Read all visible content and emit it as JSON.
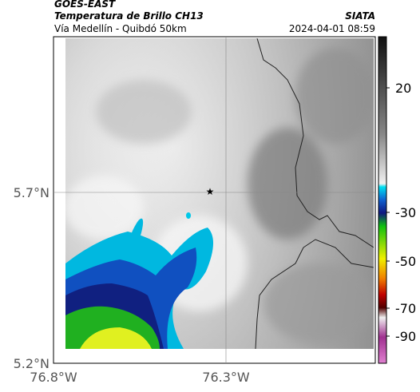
{
  "header": {
    "source": "GOES-EAST",
    "product": "Temperatura de Brillo CH13",
    "location": "Vía Medellín - Quibdó 50km",
    "agency": "SIATA",
    "datetime": "2024-04-01 08:59"
  },
  "map": {
    "lat_labels": [
      "5.7°N",
      "5.2°N"
    ],
    "lon_labels": [
      "76.8°W",
      "76.3°W"
    ]
  },
  "colorbar": {
    "ticks": [
      20,
      -30,
      -50,
      -70,
      -90
    ]
  }
}
